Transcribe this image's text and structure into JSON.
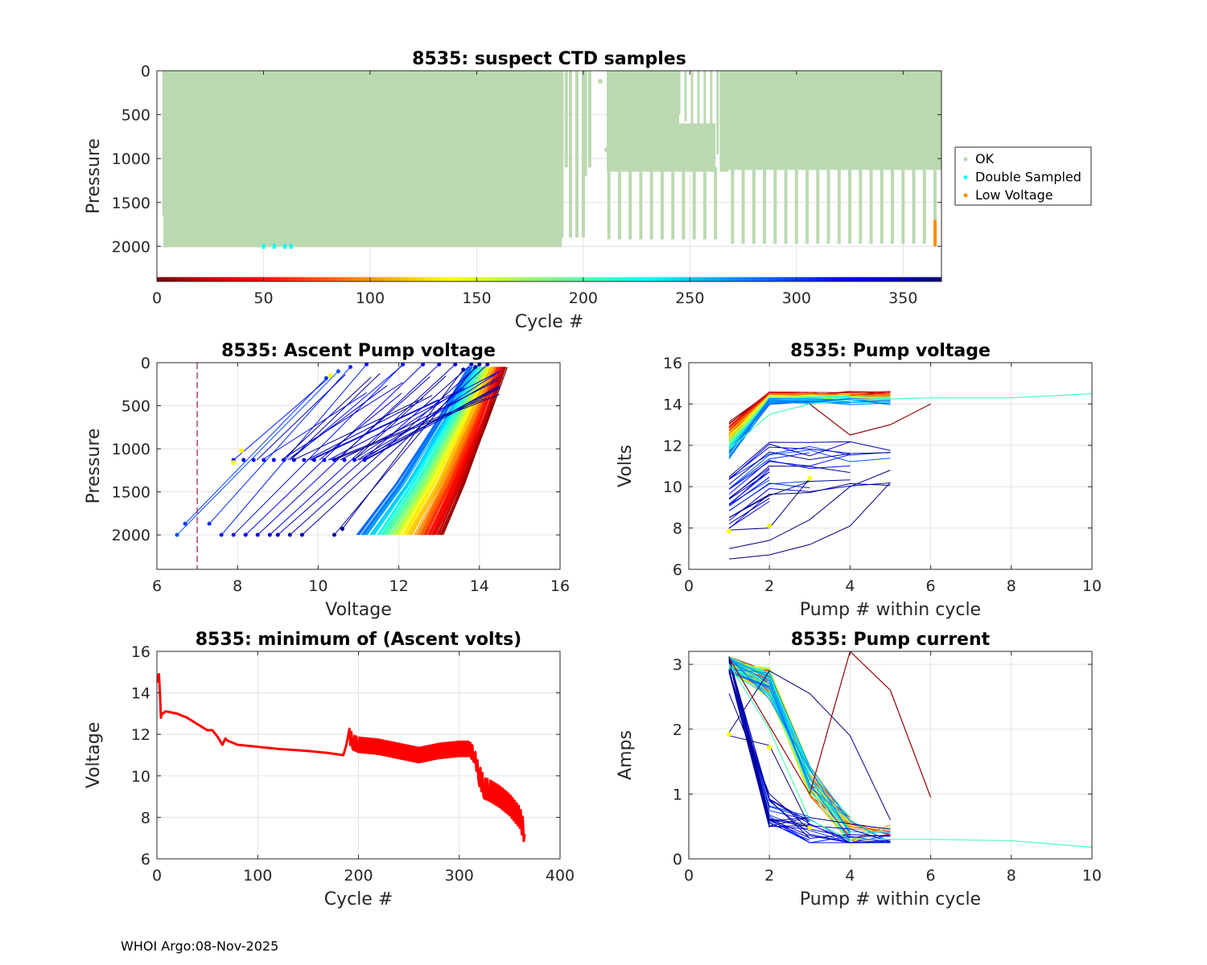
{
  "footer": "WHOI Argo:08-Nov-2025",
  "colors": {
    "ok": "#bbd9b0",
    "double_sampled": "#00ffff",
    "low_voltage": "#ff8c00",
    "min_volts_line": "#ff0000",
    "reference_line": "#a2142f",
    "marker_star": "#ffff00"
  },
  "chart_data": [
    {
      "id": "suspect",
      "type": "scatter",
      "title": "8535: suspect CTD samples",
      "xlabel": "Cycle #",
      "ylabel": "Pressure",
      "xlim": [
        0,
        368
      ],
      "ylim": [
        0,
        2400
      ],
      "y_reversed": true,
      "xticks": [
        0,
        50,
        100,
        150,
        200,
        250,
        300,
        350
      ],
      "yticks": [
        0,
        500,
        1000,
        1500,
        2000
      ],
      "legend": [
        "OK",
        "Double Sampled",
        "Low Voltage"
      ],
      "legend_position": "outside-right",
      "colorbar": "jet, cycles 0-368 along bottom axis",
      "ok_profiles": [
        [
          1,
          2000
        ],
        [
          190,
          2000
        ],
        [
          193,
          1200
        ],
        [
          200,
          1200
        ],
        [
          210,
          1900
        ],
        [
          215,
          1150
        ],
        [
          260,
          1900
        ],
        [
          265,
          1150
        ],
        [
          368,
          1950
        ]
      ],
      "double_sampled": [
        [
          50,
          2000
        ],
        [
          55,
          2000
        ],
        [
          60,
          2000
        ],
        [
          63,
          2000
        ]
      ],
      "low_voltage": [
        [
          365,
          1700
        ],
        [
          365,
          2000
        ]
      ]
    },
    {
      "id": "ascent",
      "type": "line",
      "title": "8535: Ascent Pump voltage",
      "xlabel": "Voltage",
      "ylabel": "Pressure",
      "xlim": [
        6,
        16
      ],
      "ylim": [
        0,
        2400
      ],
      "y_reversed": true,
      "xticks": [
        6,
        8,
        10,
        12,
        14,
        16
      ],
      "yticks": [
        0,
        500,
        1000,
        1500,
        2000
      ],
      "reference_voltage": 7,
      "series_ranges": [
        {
          "cycle_group": "late",
          "start_volts": [
            6.5,
            11.0
          ],
          "end_volts": [
            10.4,
            14.0
          ]
        },
        {
          "cycle_group": "early",
          "start_volts": [
            10.8,
            13.1
          ],
          "end_volts": [
            13.5,
            14.7
          ]
        }
      ]
    },
    {
      "id": "pumpv",
      "type": "line",
      "title": "8535: Pump voltage",
      "xlabel": "Pump # within cycle",
      "ylabel": "Volts",
      "xlim": [
        0,
        10
      ],
      "ylim": [
        6,
        16
      ],
      "xticks": [
        0,
        2,
        4,
        6,
        8,
        10
      ],
      "yticks": [
        6,
        8,
        10,
        12,
        14,
        16
      ],
      "long_profile": [
        [
          1,
          11.8
        ],
        [
          2,
          13.5
        ],
        [
          3,
          14.0
        ],
        [
          4,
          14.2
        ],
        [
          6,
          14.3
        ],
        [
          8,
          14.3
        ],
        [
          10,
          14.5
        ]
      ],
      "outlier_profile": [
        [
          3,
          14.0
        ],
        [
          4,
          12.5
        ],
        [
          5,
          13.0
        ],
        [
          6,
          14.0
        ]
      ]
    },
    {
      "id": "minv",
      "type": "line",
      "title": "8535: minimum of (Ascent volts)",
      "xlabel": "Cycle #",
      "ylabel": "Voltage",
      "xlim": [
        0,
        400
      ],
      "ylim": [
        6,
        16
      ],
      "xticks": [
        0,
        100,
        200,
        300,
        400
      ],
      "yticks": [
        6,
        8,
        10,
        12,
        14,
        16
      ],
      "x": [
        0,
        1,
        2,
        3,
        4,
        5,
        6,
        8,
        10,
        20,
        30,
        40,
        50,
        55,
        60,
        65,
        68,
        70,
        80,
        100,
        120,
        150,
        170,
        185,
        188,
        190,
        195,
        200,
        220,
        240,
        260,
        280,
        300,
        310,
        315,
        320,
        325,
        330,
        340,
        350,
        360,
        365
      ],
      "y": [
        14.5,
        14.8,
        14.9,
        14.0,
        12.8,
        13.0,
        13.0,
        13.1,
        13.1,
        13.0,
        12.8,
        12.5,
        12.2,
        12.2,
        11.9,
        11.5,
        11.8,
        11.7,
        11.5,
        11.4,
        11.3,
        11.2,
        11.1,
        11.0,
        11.5,
        12.0,
        11.6,
        11.5,
        11.4,
        11.2,
        11.0,
        11.2,
        11.3,
        11.3,
        11.0,
        10.0,
        9.4,
        9.3,
        9.0,
        8.6,
        8.0,
        7.2
      ]
    },
    {
      "id": "pumpc",
      "type": "line",
      "title": "8535: Pump current",
      "xlabel": "Pump # within cycle",
      "ylabel": "Amps",
      "xlim": [
        0,
        10
      ],
      "ylim": [
        0,
        3.2
      ],
      "xticks": [
        0,
        2,
        4,
        6,
        8,
        10
      ],
      "yticks": [
        0,
        1,
        2,
        3
      ],
      "long_profile": [
        [
          1,
          3.0
        ],
        [
          2,
          2.0
        ],
        [
          3,
          0.6
        ],
        [
          4,
          0.3
        ],
        [
          6,
          0.3
        ],
        [
          8,
          0.28
        ],
        [
          10,
          0.18
        ]
      ],
      "outlier_profile": [
        [
          1,
          3.1
        ],
        [
          3,
          1.0
        ],
        [
          4,
          3.2
        ],
        [
          5,
          2.6
        ],
        [
          6,
          0.95
        ]
      ]
    }
  ]
}
